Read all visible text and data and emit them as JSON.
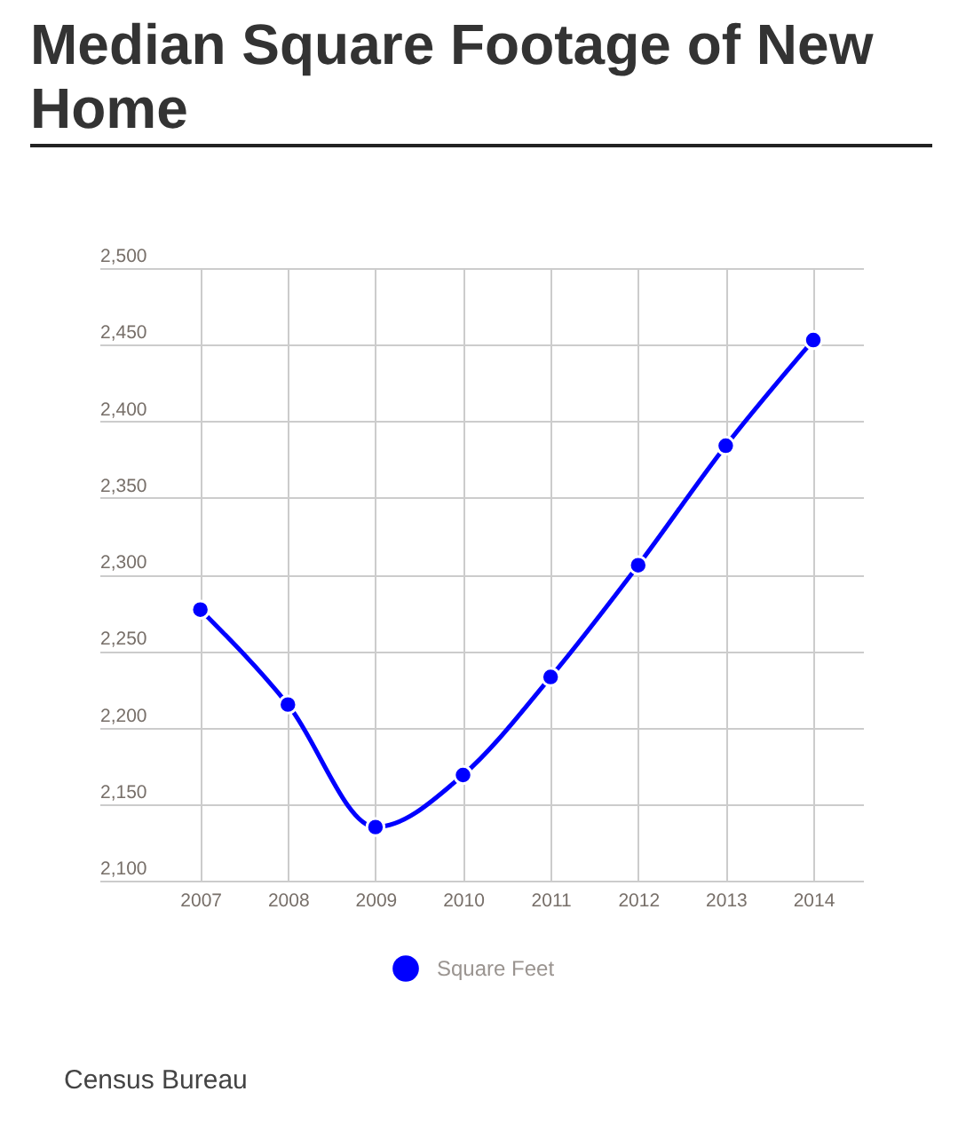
{
  "chart_data": {
    "type": "line",
    "title": "Median Square Footage of New Home",
    "categories": [
      "2007",
      "2008",
      "2009",
      "2010",
      "2011",
      "2012",
      "2013",
      "2014"
    ],
    "series": [
      {
        "name": "Square Feet",
        "color": "#0000ff",
        "values": [
          2277,
          2215,
          2135,
          2169,
          2233,
          2306,
          2384,
          2453
        ]
      }
    ],
    "ylim": [
      2100,
      2500
    ],
    "yticks": [
      {
        "value": 2100,
        "label": "2,100"
      },
      {
        "value": 2150,
        "label": "2,150"
      },
      {
        "value": 2200,
        "label": "2,200"
      },
      {
        "value": 2250,
        "label": "2,250"
      },
      {
        "value": 2300,
        "label": "2,300"
      },
      {
        "value": 2350,
        "label": "2,350"
      },
      {
        "value": 2400,
        "label": "2,400"
      },
      {
        "value": 2450,
        "label": "2,450"
      },
      {
        "value": 2500,
        "label": "2,500"
      }
    ],
    "grid": true,
    "legend": "bottom",
    "marker": "circle",
    "annotations": [
      "Census Bureau"
    ]
  }
}
